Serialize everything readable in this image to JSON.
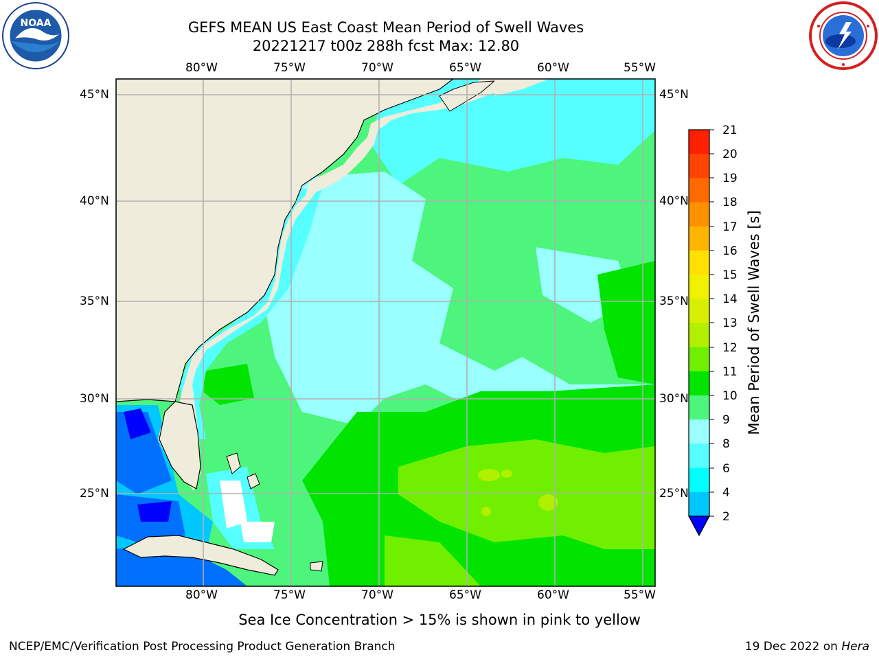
{
  "title": {
    "line1": "GEFS MEAN US East Coast Mean Period of Swell Waves",
    "line2": "20221217 t00z 288h fcst   Max: 12.80"
  },
  "map": {
    "lon_labels_top": [
      "80°W",
      "75°W",
      "70°W",
      "65°W",
      "60°W",
      "55°W"
    ],
    "lon_labels_bottom": [
      "80°W",
      "75°W",
      "70°W",
      "65°W",
      "60°W",
      "55°W"
    ],
    "lat_labels_left": [
      "45°N",
      "40°N",
      "35°N",
      "30°N",
      "25°N"
    ],
    "lat_labels_right": [
      "45°N",
      "40°N",
      "35°N",
      "30°N",
      "25°N"
    ],
    "land_color": "#efecdc",
    "grid_color": "#b0b0b0"
  },
  "colorbar": {
    "title": "Mean Period of Swell Waves [s]",
    "labels": [
      "21",
      "20",
      "19",
      "18",
      "17",
      "16",
      "15",
      "14",
      "13",
      "12",
      "11",
      "10",
      "9",
      "8",
      "6",
      "4",
      "2"
    ],
    "colors": [
      "#ff0000",
      "#ff2000",
      "#ff4400",
      "#ff6a00",
      "#ff9000",
      "#ffb400",
      "#ffe000",
      "#f0f000",
      "#d8f000",
      "#b0f000",
      "#70f000",
      "#00e400",
      "#4ef57c",
      "#99ffff",
      "#55ffff",
      "#00ffff",
      "#00c8ff",
      "#0070ff",
      "#0000ff"
    ]
  },
  "logos": {
    "left": "noaa-logo",
    "right": "nws-logo"
  },
  "note": "Sea Ice Concentration > 15% is shown in pink to yellow",
  "footer": {
    "left": "NCEP/EMC/Verification Post Processing Product Generation Branch",
    "right_prefix": "19 Dec 2022 on ",
    "right_machine": "Hera"
  }
}
